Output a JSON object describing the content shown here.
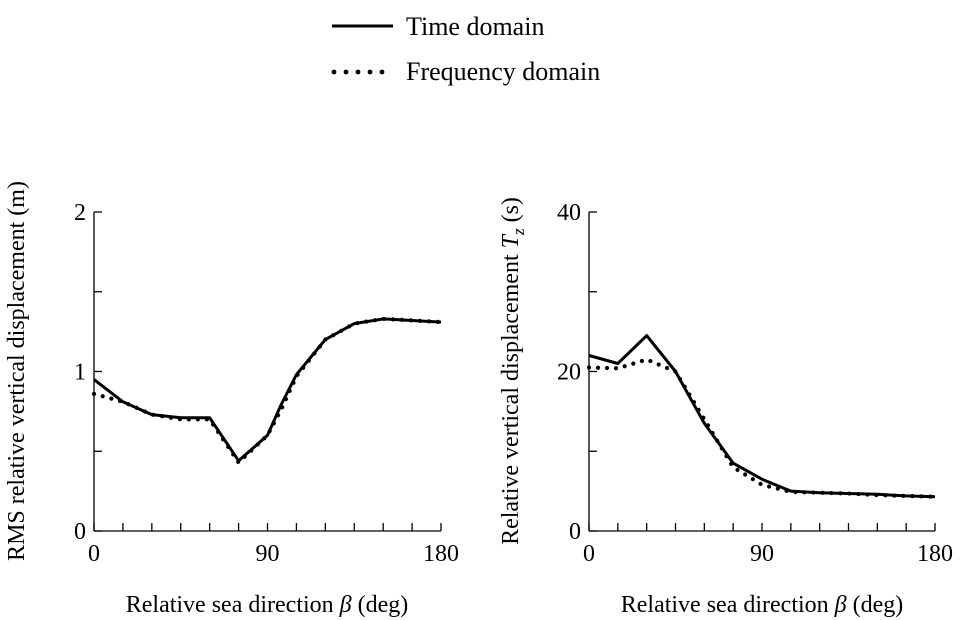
{
  "legend": {
    "entries": [
      {
        "label": "Time domain",
        "style": "solid"
      },
      {
        "label": "Frequency domain",
        "style": "dotted"
      }
    ]
  },
  "chart_data": [
    {
      "type": "line",
      "xlabel_prefix": "Relative sea direction ",
      "xlabel_symbol": "β",
      "xlabel_suffix": " (deg)",
      "ylabel": "RMS relative vertical displacement (m)",
      "xlim": [
        0,
        180
      ],
      "ylim": [
        0,
        2
      ],
      "xticks": [
        0,
        90,
        180
      ],
      "xtick_labels": [
        "0",
        "90",
        "180"
      ],
      "xminor_step": 15,
      "yticks": [
        0,
        1,
        2
      ],
      "ytick_labels": [
        "0",
        "1",
        "2"
      ],
      "yminor_step": 0.5,
      "grid": false,
      "series": [
        {
          "name": "Time domain",
          "style": "solid",
          "x": [
            0,
            15,
            30,
            45,
            60,
            75,
            90,
            97,
            105,
            120,
            135,
            150,
            165,
            180
          ],
          "y": [
            0.95,
            0.81,
            0.73,
            0.71,
            0.71,
            0.44,
            0.6,
            0.79,
            0.98,
            1.2,
            1.3,
            1.33,
            1.32,
            1.31
          ]
        },
        {
          "name": "Frequency domain",
          "style": "dotted",
          "x": [
            0,
            15,
            30,
            45,
            60,
            75,
            90,
            97,
            105,
            120,
            135,
            150,
            165,
            180
          ],
          "y": [
            0.86,
            0.81,
            0.73,
            0.7,
            0.7,
            0.43,
            0.6,
            0.76,
            0.97,
            1.2,
            1.3,
            1.33,
            1.32,
            1.31
          ]
        }
      ]
    },
    {
      "type": "line",
      "xlabel_prefix": "Relative sea direction ",
      "xlabel_symbol": "β",
      "xlabel_suffix": " (deg)",
      "ylabel_prefix": "Relative vertical displacement ",
      "ylabel_symbol": "T",
      "ylabel_subscript": "z",
      "ylabel_suffix": " (s)",
      "xlim": [
        0,
        180
      ],
      "ylim": [
        0,
        40
      ],
      "xticks": [
        0,
        90,
        180
      ],
      "xtick_labels": [
        "0",
        "90",
        "180"
      ],
      "xminor_step": 15,
      "yticks": [
        0,
        20,
        40
      ],
      "ytick_labels": [
        "0",
        "20",
        "40"
      ],
      "yminor_step": 10,
      "grid": false,
      "series": [
        {
          "name": "Time domain",
          "style": "solid",
          "x": [
            0,
            15,
            30,
            45,
            60,
            75,
            90,
            105,
            120,
            135,
            150,
            165,
            180
          ],
          "y": [
            22.0,
            21.0,
            24.5,
            20.0,
            13.5,
            8.5,
            6.5,
            5.0,
            4.8,
            4.7,
            4.6,
            4.4,
            4.3
          ]
        },
        {
          "name": "Frequency domain",
          "style": "dotted",
          "x": [
            0,
            15,
            30,
            45,
            60,
            75,
            90,
            105,
            120,
            135,
            150,
            165,
            180
          ],
          "y": [
            20.5,
            20.4,
            21.5,
            20.0,
            14.0,
            8.0,
            5.8,
            4.9,
            4.8,
            4.7,
            4.5,
            4.4,
            4.3
          ]
        }
      ]
    }
  ]
}
